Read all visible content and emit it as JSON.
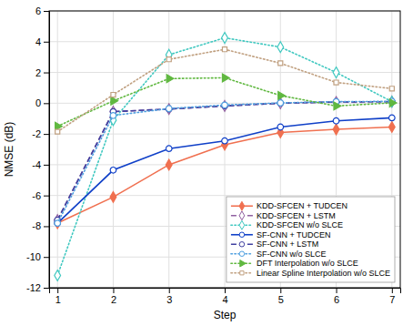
{
  "chart_data": {
    "type": "line",
    "x_label": "Step",
    "y_label": "NMSE (dB)",
    "x": [
      1,
      2,
      3,
      4,
      5,
      6,
      7
    ],
    "series": [
      {
        "name": "KDD-SFCEN + TUDCEN",
        "color": "#F07050",
        "marker": "diamond",
        "line_style": "solid",
        "values": [
          -7.8,
          -6.1,
          -4.0,
          -2.7,
          -1.9,
          -1.7,
          -1.55
        ]
      },
      {
        "name": "KDD-SFCEN + LSTM",
        "color": "#9060A0",
        "marker": "diamond-open",
        "line_style": "dashed",
        "values": [
          -7.6,
          -0.55,
          -0.38,
          -0.18,
          0.0,
          0.08,
          0.1
        ]
      },
      {
        "name": "KDD-SFCEN w/o SLCE",
        "color": "#40C8C0",
        "marker": "diamond-open",
        "line_style": "dotted",
        "values": [
          -11.2,
          -1.1,
          3.15,
          4.25,
          3.65,
          2.0,
          0.1
        ]
      },
      {
        "name": "SF-CNN + TUDCEN",
        "color": "#1040C8",
        "marker": "circle-open",
        "line_style": "solid",
        "values": [
          -7.8,
          -4.35,
          -2.95,
          -2.45,
          -1.55,
          -1.15,
          -0.95
        ]
      },
      {
        "name": "SF-CNN + LSTM",
        "color": "#4040A0",
        "marker": "circle-open",
        "line_style": "dashed",
        "values": [
          -7.6,
          -0.55,
          -0.38,
          -0.18,
          0.0,
          0.08,
          0.1
        ]
      },
      {
        "name": "SF-CNN w/o SLCE",
        "color": "#50A0E0",
        "marker": "circle-open",
        "line_style": "dotted",
        "values": [
          -7.8,
          -0.8,
          -0.35,
          -0.12,
          0.02,
          0.1,
          0.12
        ]
      },
      {
        "name": "DFT Interpolation w/o SLCE",
        "color": "#60B840",
        "marker": "triangle-right",
        "line_style": "dotted",
        "values": [
          -1.5,
          0.15,
          1.6,
          1.65,
          0.5,
          -0.18,
          0.02
        ]
      },
      {
        "name": "Linear Spline Interpolation w/o SLCE",
        "color": "#C0A080",
        "marker": "square-open",
        "line_style": "dotted",
        "values": [
          -1.85,
          0.55,
          2.85,
          3.5,
          2.6,
          1.35,
          0.95
        ]
      }
    ],
    "xlim": [
      0.85,
      7.15
    ],
    "ylim": [
      -12,
      6
    ],
    "xticks": [
      1,
      2,
      3,
      4,
      5,
      6,
      7
    ],
    "yticks": [
      -12,
      -10,
      -8,
      -6,
      -4,
      -2,
      0,
      2,
      4,
      6
    ],
    "grid": true,
    "legend": "lower right"
  }
}
